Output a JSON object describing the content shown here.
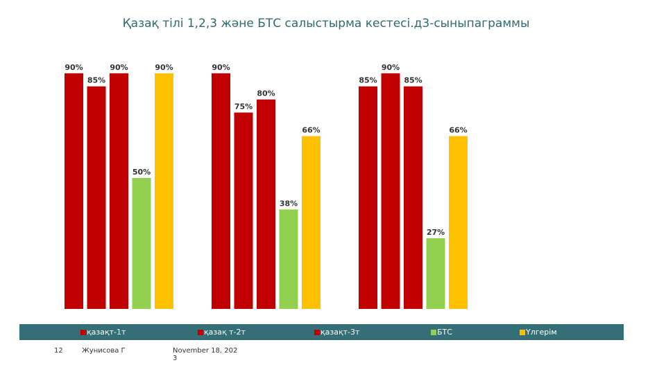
{
  "chart_data": {
    "type": "bar",
    "title": "Қазақ тілі 1,2,3 және БТС салыстырма кестесі.д3-сыныпаграммы",
    "categories": [
      "",
      "",
      ""
    ],
    "series": [
      {
        "name": "қазақт-1т",
        "color": "#C00000",
        "values": [
          90,
          90,
          85
        ]
      },
      {
        "name": "қазақ т-2т",
        "color": "#C00000",
        "values": [
          85,
          75,
          90
        ]
      },
      {
        "name": "қазақт-3т",
        "color": "#C00000",
        "values": [
          90,
          80,
          85
        ]
      },
      {
        "name": "БТС",
        "color": "#92D050",
        "values": [
          50,
          38,
          27
        ]
      },
      {
        "name": "Үлгерім",
        "color": "#FFC000",
        "values": [
          90,
          66,
          66
        ]
      }
    ],
    "data_labels": [
      [
        "90%",
        "90%",
        "85%"
      ],
      [
        "85%",
        "75%",
        "90%"
      ],
      [
        "90%",
        "80%",
        "85%"
      ],
      [
        "50%",
        "38%",
        "27%"
      ],
      [
        "90%",
        "66%",
        "66%"
      ]
    ],
    "ylim": [
      0,
      100
    ],
    "grid": false,
    "legend_placement": "bottom"
  },
  "footer": {
    "slide_number": "12",
    "author": "Жунисова Г",
    "date": "November 18, 2023"
  },
  "colors": {
    "legend_bg": "#346F78",
    "title": "#2F6B73"
  }
}
